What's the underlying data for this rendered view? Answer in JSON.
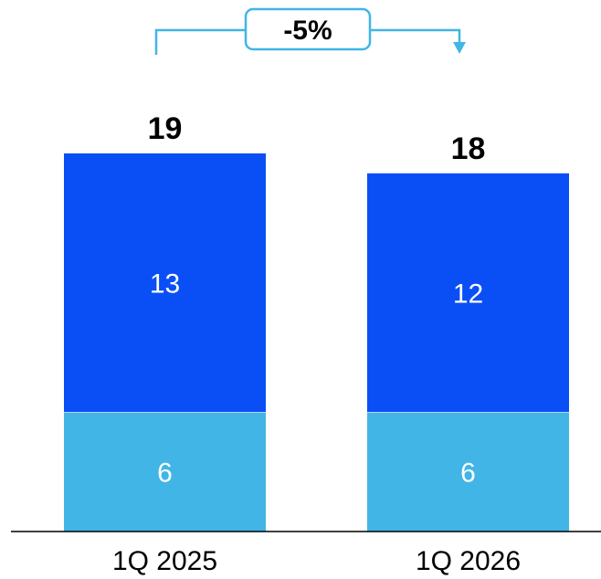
{
  "chart_data": {
    "type": "bar",
    "stacked": true,
    "categories": [
      "1Q 2025",
      "1Q 2026"
    ],
    "series": [
      {
        "values": [
          6,
          6
        ],
        "color": "#41b6e6"
      },
      {
        "values": [
          13,
          12
        ],
        "color": "#0a4ff5"
      }
    ],
    "totals": [
      "19",
      "18"
    ],
    "annotation": {
      "text": "-5%",
      "color": "#41b6e6"
    },
    "ylim": [
      0,
      19
    ],
    "grid": false,
    "legend": "none"
  }
}
